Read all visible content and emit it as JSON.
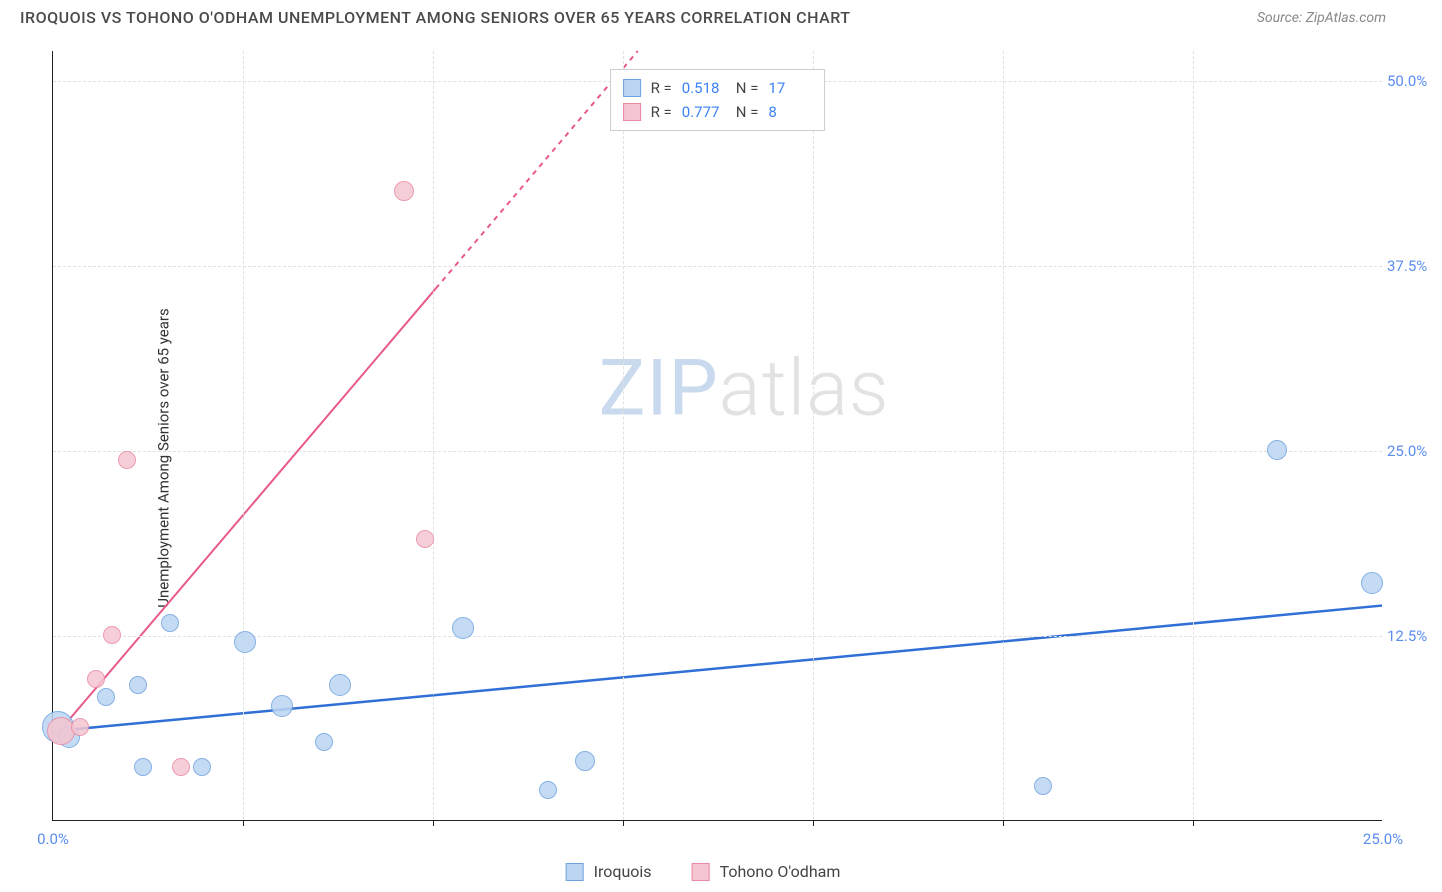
{
  "header": {
    "title": "IROQUOIS VS TOHONO O'ODHAM UNEMPLOYMENT AMONG SENIORS OVER 65 YEARS CORRELATION CHART",
    "source": "Source: ZipAtlas.com"
  },
  "axes": {
    "ylabel": "Unemployment Among Seniors over 65 years",
    "xlim": [
      0,
      25
    ],
    "ylim": [
      0,
      52
    ],
    "xticks": [
      0,
      25
    ],
    "xtick_labels": [
      "0.0%",
      "25.0%"
    ],
    "xtick_minor": [
      3.57,
      7.14,
      10.71,
      14.29,
      17.86,
      21.43
    ],
    "yticks": [
      12.5,
      25.0,
      37.5,
      50.0
    ],
    "ytick_labels": [
      "12.5%",
      "25.0%",
      "37.5%",
      "50.0%"
    ],
    "grid_color": "#e0e0e0",
    "axis_color": "#222222",
    "label_color": "#5b8def",
    "label_fontsize": 15
  },
  "series": [
    {
      "name": "Iroquois",
      "color_fill": "#bcd5f2",
      "color_stroke": "#6fa3e0",
      "r_value": "0.518",
      "n_value": "17",
      "trend": {
        "x1": 0,
        "y1": 6.0,
        "x2": 25,
        "y2": 14.5,
        "dash_after_x": null,
        "color": "#2f6fd6",
        "width": 2.5
      },
      "points": [
        {
          "x": 0.1,
          "y": 6.3,
          "r": 16
        },
        {
          "x": 0.3,
          "y": 5.6,
          "r": 11
        },
        {
          "x": 1.0,
          "y": 8.3,
          "r": 9
        },
        {
          "x": 1.6,
          "y": 9.1,
          "r": 9
        },
        {
          "x": 1.7,
          "y": 3.6,
          "r": 9
        },
        {
          "x": 2.2,
          "y": 13.3,
          "r": 9
        },
        {
          "x": 2.8,
          "y": 3.6,
          "r": 9
        },
        {
          "x": 3.6,
          "y": 12.0,
          "r": 11
        },
        {
          "x": 4.3,
          "y": 7.7,
          "r": 11
        },
        {
          "x": 5.1,
          "y": 5.3,
          "r": 9
        },
        {
          "x": 5.4,
          "y": 9.1,
          "r": 11
        },
        {
          "x": 7.7,
          "y": 13.0,
          "r": 11
        },
        {
          "x": 9.3,
          "y": 2.0,
          "r": 9
        },
        {
          "x": 10.0,
          "y": 4.0,
          "r": 10
        },
        {
          "x": 18.6,
          "y": 2.3,
          "r": 9
        },
        {
          "x": 23.0,
          "y": 25.0,
          "r": 10
        },
        {
          "x": 24.8,
          "y": 16.0,
          "r": 11
        }
      ]
    },
    {
      "name": "Tohono O'odham",
      "color_fill": "#f5c6d2",
      "color_stroke": "#e98aa5",
      "r_value": "0.777",
      "n_value": "8",
      "trend": {
        "x1": 0,
        "y1": 5.5,
        "x2": 11.0,
        "y2": 52.0,
        "dash_after_x": 7.2,
        "color": "#e85a89",
        "width": 2
      },
      "points": [
        {
          "x": 0.15,
          "y": 6.0,
          "r": 14
        },
        {
          "x": 0.5,
          "y": 6.3,
          "r": 9
        },
        {
          "x": 0.8,
          "y": 9.5,
          "r": 9
        },
        {
          "x": 1.1,
          "y": 12.5,
          "r": 9
        },
        {
          "x": 1.4,
          "y": 24.3,
          "r": 9
        },
        {
          "x": 2.4,
          "y": 3.6,
          "r": 9
        },
        {
          "x": 6.6,
          "y": 42.5,
          "r": 10
        },
        {
          "x": 7.0,
          "y": 19.0,
          "r": 9
        }
      ]
    }
  ],
  "legend_top": {
    "r_label": "R =",
    "n_label": "N ="
  },
  "legend_bottom": {
    "items": [
      "Iroquois",
      "Tohono O'odham"
    ]
  },
  "watermark": {
    "part1": "ZIP",
    "part2": "atlas"
  },
  "colors": {
    "background": "#ffffff",
    "title": "#4a4a4a",
    "source": "#888888"
  }
}
